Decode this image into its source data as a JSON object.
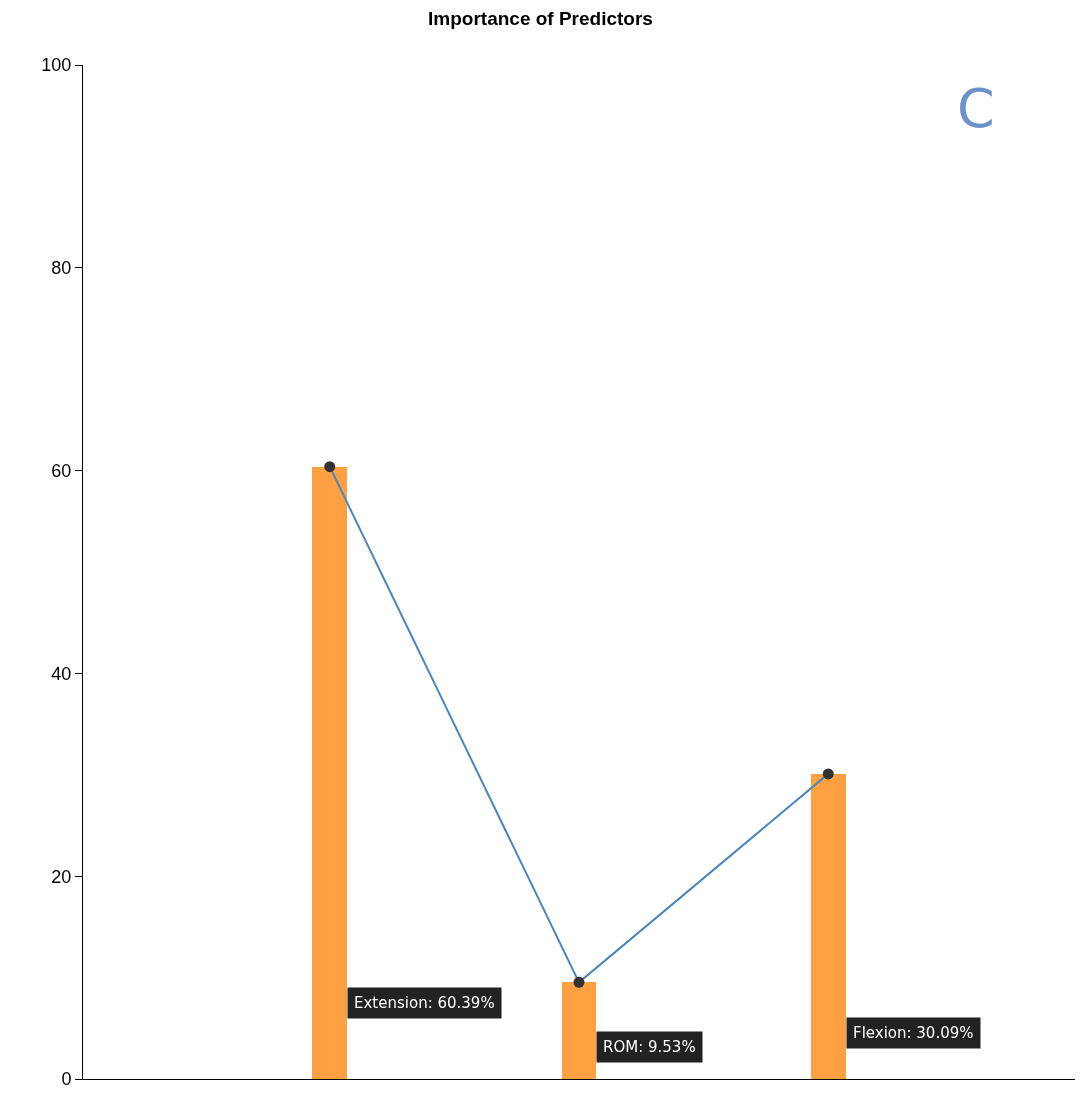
{
  "chart_data": {
    "type": "bar",
    "title": "Importance of Predictors",
    "categories": [
      null,
      null,
      null
    ],
    "series": [
      {
        "color": "#ffa143",
        "values": [
          60.39,
          9.53,
          30.09
        ]
      },
      {
        "type": "line",
        "color": "#4a86bd",
        "values": [
          60.39,
          9.53,
          30.09
        ],
        "marker": "circle",
        "line_style": "solid"
      }
    ],
    "annotations": [
      "C",
      "Extension: 60.39%",
      "ROM: 9.53%",
      "Flexion: 30.09%"
    ],
    "ylim": [
      0,
      100
    ],
    "yticks": [
      0,
      20,
      40,
      60,
      80,
      100
    ]
  }
}
